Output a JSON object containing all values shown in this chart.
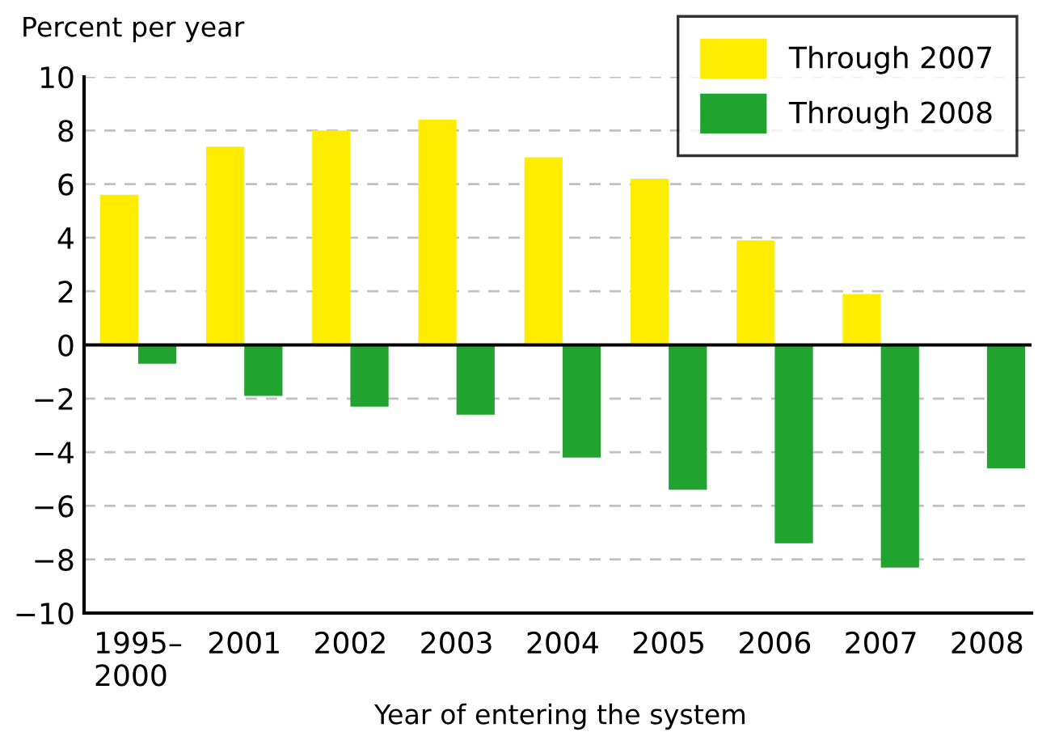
{
  "chart_data": {
    "type": "bar",
    "ylabel": "Percent per year",
    "xlabel": "Year of entering the system",
    "categories": [
      "1995–\n2000",
      "2001",
      "2002",
      "2003",
      "2004",
      "2005",
      "2006",
      "2007",
      "2008"
    ],
    "series": [
      {
        "name": "Through 2007",
        "color": "#ffec00",
        "values": [
          5.6,
          7.4,
          8.0,
          8.4,
          7.0,
          6.2,
          3.9,
          1.9,
          null
        ]
      },
      {
        "name": "Through 2008",
        "color": "#21a330",
        "values": [
          -0.7,
          -1.9,
          -2.3,
          -2.6,
          -4.2,
          -5.4,
          -7.4,
          -8.3,
          -4.6
        ]
      }
    ],
    "ylim": [
      -10,
      10
    ],
    "yticks": [
      {
        "value": -10,
        "label": "−10"
      },
      {
        "value": -8,
        "label": "−8"
      },
      {
        "value": -6,
        "label": "−6"
      },
      {
        "value": -4,
        "label": "−4"
      },
      {
        "value": -2,
        "label": "−2"
      },
      0,
      2,
      4,
      6,
      8,
      10
    ],
    "grid": "y",
    "legend": "top right"
  }
}
